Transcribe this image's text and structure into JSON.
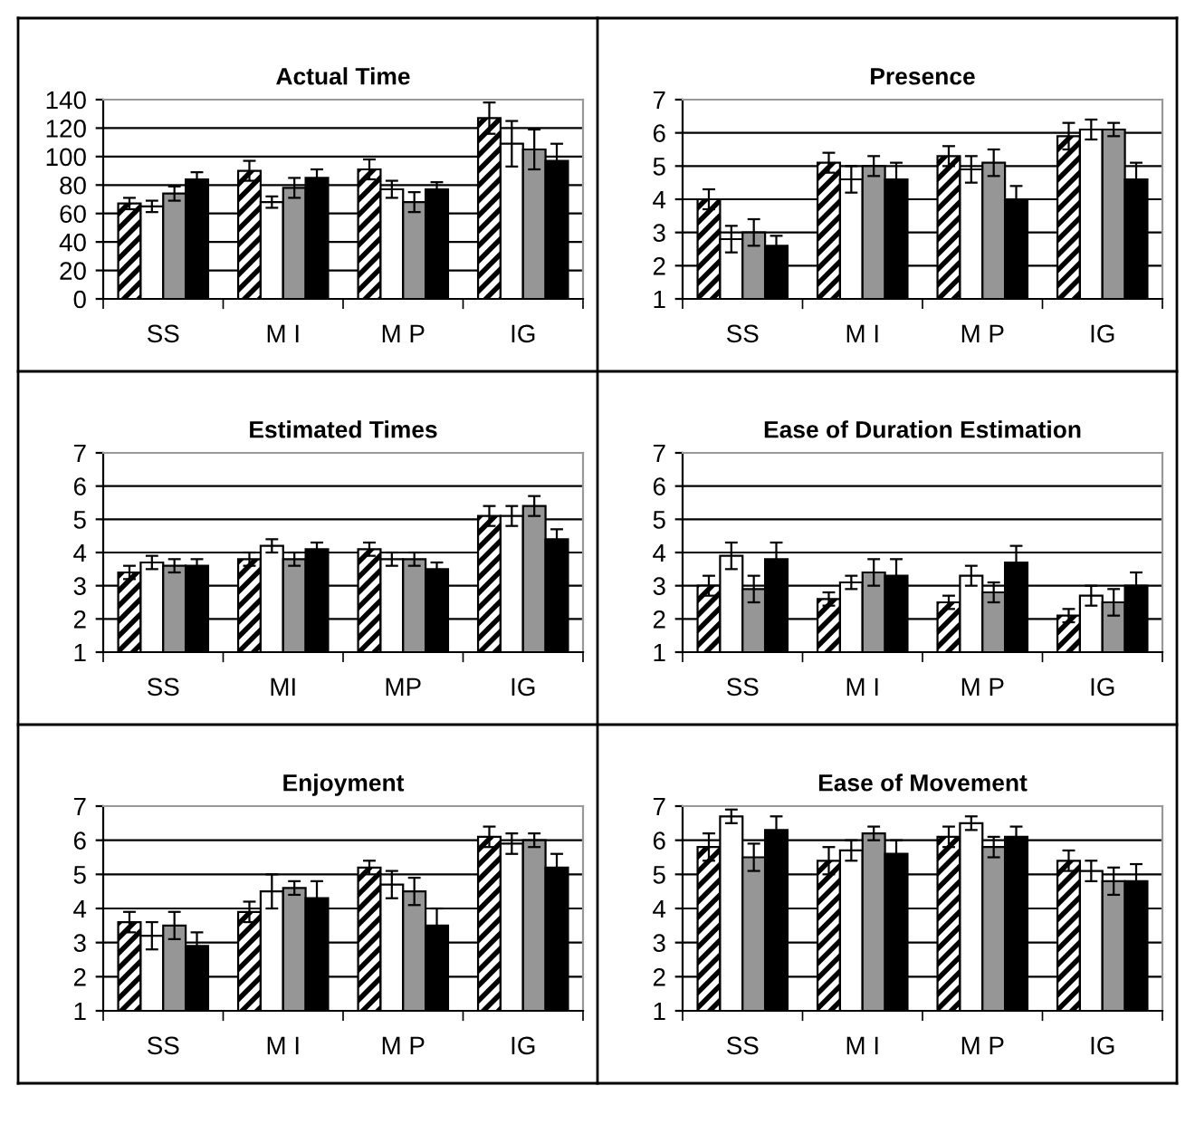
{
  "chart_data": [
    {
      "type": "bar",
      "title": "Actual Time",
      "categories": [
        "SS",
        "M I",
        "M P",
        "IG"
      ],
      "ylim": [
        0,
        140
      ],
      "yticks": [
        0,
        20,
        40,
        60,
        80,
        100,
        120,
        140
      ],
      "grid": "y",
      "series": [
        {
          "color": "#000000",
          "values": [
            67,
            90,
            91,
            127
          ],
          "errors": [
            4,
            7,
            7,
            11
          ]
        },
        {
          "color": "#ffffff",
          "values": [
            65,
            68,
            77,
            109
          ],
          "errors": [
            4,
            4,
            6,
            16
          ]
        },
        {
          "color": "#969696",
          "values": [
            74,
            78,
            68,
            105
          ],
          "errors": [
            5,
            7,
            7,
            14
          ]
        },
        {
          "color": "#000000",
          "values": [
            84,
            85,
            77,
            97
          ],
          "errors": [
            5,
            6,
            5,
            12
          ]
        }
      ]
    },
    {
      "type": "bar",
      "title": "Presence",
      "categories": [
        "SS",
        "M I",
        "M P",
        "IG"
      ],
      "ylim": [
        1,
        7
      ],
      "yticks": [
        1,
        2,
        3,
        4,
        5,
        6,
        7
      ],
      "grid": "y",
      "series": [
        {
          "color": "#000000",
          "values": [
            4.0,
            5.1,
            5.3,
            5.9
          ],
          "errors": [
            0.3,
            0.3,
            0.3,
            0.4
          ]
        },
        {
          "color": "#ffffff",
          "values": [
            2.8,
            4.6,
            4.9,
            6.1
          ],
          "errors": [
            0.4,
            0.4,
            0.4,
            0.3
          ]
        },
        {
          "color": "#969696",
          "values": [
            3.0,
            5.0,
            5.1,
            6.1
          ],
          "errors": [
            0.4,
            0.3,
            0.4,
            0.2
          ]
        },
        {
          "color": "#000000",
          "values": [
            2.6,
            4.6,
            4.0,
            4.6
          ],
          "errors": [
            0.3,
            0.5,
            0.4,
            0.5
          ]
        }
      ]
    },
    {
      "type": "bar",
      "title": "Estimated Times",
      "categories": [
        "SS",
        "MI",
        "MP",
        "IG"
      ],
      "ylim": [
        1,
        7
      ],
      "yticks": [
        1,
        2,
        3,
        4,
        5,
        6,
        7
      ],
      "grid": "y",
      "series": [
        {
          "color": "#000000",
          "values": [
            3.4,
            3.8,
            4.1,
            5.1
          ],
          "errors": [
            0.2,
            0.2,
            0.2,
            0.3
          ]
        },
        {
          "color": "#ffffff",
          "values": [
            3.7,
            4.2,
            3.8,
            5.1
          ],
          "errors": [
            0.2,
            0.2,
            0.2,
            0.3
          ]
        },
        {
          "color": "#969696",
          "values": [
            3.6,
            3.8,
            3.8,
            5.4
          ],
          "errors": [
            0.2,
            0.2,
            0.2,
            0.3
          ]
        },
        {
          "color": "#000000",
          "values": [
            3.6,
            4.1,
            3.5,
            4.4
          ],
          "errors": [
            0.2,
            0.2,
            0.2,
            0.3
          ]
        }
      ]
    },
    {
      "type": "bar",
      "title": "Ease of Duration Estimation",
      "categories": [
        "SS",
        "M I",
        "M P",
        "IG"
      ],
      "ylim": [
        1,
        7
      ],
      "yticks": [
        1,
        2,
        3,
        4,
        5,
        6,
        7
      ],
      "grid": "y",
      "series": [
        {
          "color": "#000000",
          "values": [
            3.0,
            2.6,
            2.5,
            2.1
          ],
          "errors": [
            0.3,
            0.2,
            0.2,
            0.2
          ]
        },
        {
          "color": "#ffffff",
          "values": [
            3.9,
            3.1,
            3.3,
            2.7
          ],
          "errors": [
            0.4,
            0.2,
            0.3,
            0.3
          ]
        },
        {
          "color": "#969696",
          "values": [
            2.9,
            3.4,
            2.8,
            2.5
          ],
          "errors": [
            0.4,
            0.4,
            0.3,
            0.4
          ]
        },
        {
          "color": "#000000",
          "values": [
            3.8,
            3.3,
            3.7,
            3.0
          ],
          "errors": [
            0.5,
            0.5,
            0.5,
            0.4
          ]
        }
      ]
    },
    {
      "type": "bar",
      "title": "Enjoyment",
      "categories": [
        "SS",
        "M I",
        "M P",
        "IG"
      ],
      "ylim": [
        1,
        7
      ],
      "yticks": [
        1,
        2,
        3,
        4,
        5,
        6,
        7
      ],
      "grid": "y",
      "series": [
        {
          "color": "#000000",
          "values": [
            3.6,
            3.9,
            5.2,
            6.1
          ],
          "errors": [
            0.3,
            0.3,
            0.2,
            0.3
          ]
        },
        {
          "color": "#ffffff",
          "values": [
            3.2,
            4.5,
            4.7,
            5.9
          ],
          "errors": [
            0.4,
            0.5,
            0.4,
            0.3
          ]
        },
        {
          "color": "#969696",
          "values": [
            3.5,
            4.6,
            4.5,
            6.0
          ],
          "errors": [
            0.4,
            0.2,
            0.4,
            0.2
          ]
        },
        {
          "color": "#000000",
          "values": [
            2.9,
            4.3,
            3.5,
            5.2
          ],
          "errors": [
            0.4,
            0.5,
            0.5,
            0.4
          ]
        }
      ]
    },
    {
      "type": "bar",
      "title": "Ease of Movement",
      "categories": [
        "SS",
        "M I",
        "M P",
        "IG"
      ],
      "ylim": [
        1,
        7
      ],
      "yticks": [
        1,
        2,
        3,
        4,
        5,
        6,
        7
      ],
      "grid": "y",
      "series": [
        {
          "color": "#000000",
          "values": [
            5.8,
            5.4,
            6.1,
            5.4
          ],
          "errors": [
            0.4,
            0.4,
            0.3,
            0.3
          ]
        },
        {
          "color": "#ffffff",
          "values": [
            6.7,
            5.7,
            6.5,
            5.1
          ],
          "errors": [
            0.2,
            0.3,
            0.2,
            0.3
          ]
        },
        {
          "color": "#969696",
          "values": [
            5.5,
            6.2,
            5.8,
            4.8
          ],
          "errors": [
            0.4,
            0.2,
            0.3,
            0.4
          ]
        },
        {
          "color": "#000000",
          "values": [
            6.3,
            5.6,
            6.1,
            4.8
          ],
          "errors": [
            0.4,
            0.4,
            0.3,
            0.5
          ]
        }
      ]
    }
  ]
}
